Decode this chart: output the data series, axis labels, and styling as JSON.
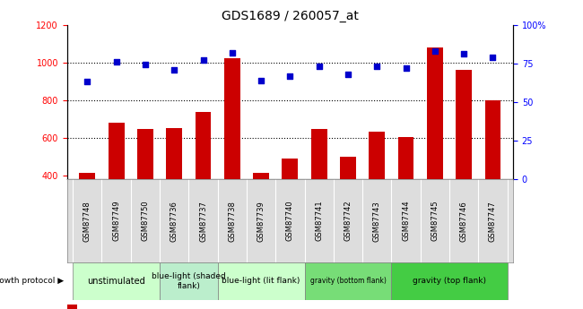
{
  "title": "GDS1689 / 260057_at",
  "samples": [
    "GSM87748",
    "GSM87749",
    "GSM87750",
    "GSM87736",
    "GSM87737",
    "GSM87738",
    "GSM87739",
    "GSM87740",
    "GSM87741",
    "GSM87742",
    "GSM87743",
    "GSM87744",
    "GSM87745",
    "GSM87746",
    "GSM87747"
  ],
  "counts": [
    415,
    681,
    645,
    652,
    737,
    1020,
    415,
    488,
    648,
    497,
    633,
    602,
    1080,
    960,
    800
  ],
  "percentiles": [
    63,
    76,
    74,
    71,
    77,
    82,
    64,
    67,
    73,
    68,
    73,
    72,
    83,
    81,
    79
  ],
  "ylim_left": [
    380,
    1200
  ],
  "ylim_right": [
    0,
    100
  ],
  "bar_color": "#cc0000",
  "dot_color": "#0000cc",
  "bar_width": 0.55,
  "figsize": [
    6.5,
    3.45
  ],
  "dpi": 100,
  "group_defs": [
    {
      "cols": [
        0,
        1,
        2
      ],
      "color": "#ccffcc",
      "label": "unstimulated",
      "fontsize": 7
    },
    {
      "cols": [
        3,
        4
      ],
      "color": "#bbeecc",
      "label": "blue-light (shaded\nflank)",
      "fontsize": 6.5
    },
    {
      "cols": [
        5,
        6,
        7
      ],
      "color": "#ccffcc",
      "label": "blue-light (lit flank)",
      "fontsize": 6.5
    },
    {
      "cols": [
        8,
        9,
        10
      ],
      "color": "#77dd77",
      "label": "gravity (bottom flank)",
      "fontsize": 5.5
    },
    {
      "cols": [
        11,
        12,
        13,
        14
      ],
      "color": "#44cc44",
      "label": "gravity (top flank)",
      "fontsize": 6.5
    }
  ]
}
